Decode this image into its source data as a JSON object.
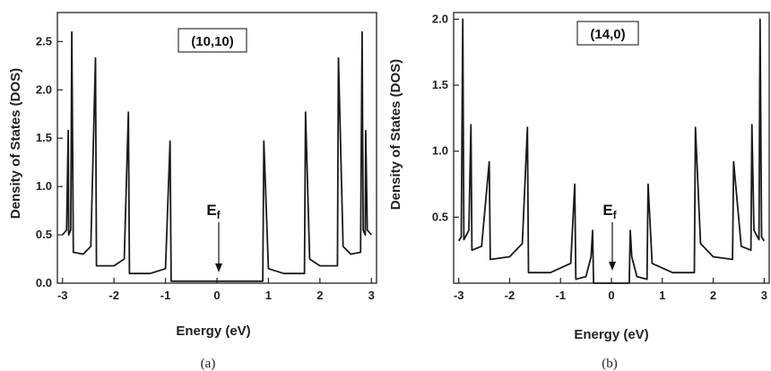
{
  "chart_data": [
    {
      "type": "line",
      "title": "(10,10)",
      "caption": "(a)",
      "xlabel": "Energy (eV)",
      "ylabel": "Density of States (DOS)",
      "xlim": [
        -3.1,
        3.1
      ],
      "ylim": [
        0,
        2.8
      ],
      "xticks": [
        -3,
        -2,
        -1,
        0,
        1,
        2,
        3
      ],
      "xtick_labels": [
        "-3",
        "-2",
        "-1",
        "0",
        "1",
        "2",
        "3"
      ],
      "yticks": [
        0,
        0.5,
        1.0,
        1.5,
        2.0,
        2.5
      ],
      "ytick_labels": [
        "0.0",
        "0.5",
        "1.0",
        "1.5",
        "2.0",
        "2.5"
      ],
      "annotation": {
        "text": "E",
        "sub": "f",
        "x": 0
      },
      "series": [
        {
          "values": [
            [
              -3.0,
              0.5
            ],
            [
              -2.92,
              0.55
            ],
            [
              -2.89,
              1.58
            ],
            [
              -2.88,
              0.5
            ],
            [
              -2.84,
              0.55
            ],
            [
              -2.82,
              2.6
            ],
            [
              -2.79,
              0.32
            ],
            [
              -2.6,
              0.3
            ],
            [
              -2.45,
              0.38
            ],
            [
              -2.36,
              2.33
            ],
            [
              -2.34,
              0.18
            ],
            [
              -2.0,
              0.18
            ],
            [
              -1.8,
              0.25
            ],
            [
              -1.72,
              1.77
            ],
            [
              -1.7,
              0.1
            ],
            [
              -1.3,
              0.1
            ],
            [
              -1.0,
              0.15
            ],
            [
              -0.91,
              1.47
            ],
            [
              -0.89,
              0.02
            ],
            [
              0.0,
              0.02
            ],
            [
              0.89,
              0.02
            ],
            [
              0.91,
              1.47
            ],
            [
              1.0,
              0.15
            ],
            [
              1.3,
              0.1
            ],
            [
              1.7,
              0.1
            ],
            [
              1.72,
              1.77
            ],
            [
              1.8,
              0.25
            ],
            [
              2.0,
              0.18
            ],
            [
              2.34,
              0.18
            ],
            [
              2.36,
              2.33
            ],
            [
              2.45,
              0.38
            ],
            [
              2.6,
              0.3
            ],
            [
              2.79,
              0.32
            ],
            [
              2.82,
              2.6
            ],
            [
              2.84,
              0.55
            ],
            [
              2.88,
              0.5
            ],
            [
              2.89,
              1.58
            ],
            [
              2.92,
              0.55
            ],
            [
              3.0,
              0.5
            ]
          ]
        }
      ]
    },
    {
      "type": "line",
      "title": "(14,0)",
      "caption": "(b)",
      "xlabel": "Energy (eV)",
      "ylabel": "Density of States (DOS)",
      "xlim": [
        -3.1,
        3.1
      ],
      "ylim": [
        0,
        2.05
      ],
      "xticks": [
        -3,
        -2,
        -1,
        0,
        1,
        2,
        3
      ],
      "xtick_labels": [
        "-3",
        "-2",
        "-1",
        "0",
        "1",
        "2",
        "3"
      ],
      "yticks": [
        0.5,
        1.0,
        1.5,
        2.0
      ],
      "ytick_labels": [
        "0.5",
        "1.0",
        "1.5",
        "2.0"
      ],
      "annotation": {
        "text": "E",
        "sub": "f",
        "x": 0
      },
      "series": [
        {
          "values": [
            [
              -3.0,
              0.32
            ],
            [
              -2.95,
              0.35
            ],
            [
              -2.92,
              2.0
            ],
            [
              -2.9,
              0.33
            ],
            [
              -2.8,
              0.4
            ],
            [
              -2.76,
              1.2
            ],
            [
              -2.74,
              0.25
            ],
            [
              -2.55,
              0.28
            ],
            [
              -2.4,
              0.92
            ],
            [
              -2.38,
              0.18
            ],
            [
              -2.0,
              0.2
            ],
            [
              -1.75,
              0.3
            ],
            [
              -1.65,
              1.18
            ],
            [
              -1.63,
              0.08
            ],
            [
              -1.2,
              0.08
            ],
            [
              -0.8,
              0.15
            ],
            [
              -0.72,
              0.75
            ],
            [
              -0.7,
              0.03
            ],
            [
              -0.5,
              0.05
            ],
            [
              -0.4,
              0.2
            ],
            [
              -0.37,
              0.4
            ],
            [
              -0.35,
              0.0
            ],
            [
              0.35,
              0.0
            ],
            [
              0.37,
              0.4
            ],
            [
              0.4,
              0.2
            ],
            [
              0.5,
              0.05
            ],
            [
              0.7,
              0.03
            ],
            [
              0.72,
              0.75
            ],
            [
              0.8,
              0.15
            ],
            [
              1.2,
              0.08
            ],
            [
              1.63,
              0.08
            ],
            [
              1.65,
              1.18
            ],
            [
              1.75,
              0.3
            ],
            [
              2.0,
              0.2
            ],
            [
              2.38,
              0.18
            ],
            [
              2.4,
              0.92
            ],
            [
              2.55,
              0.28
            ],
            [
              2.74,
              0.25
            ],
            [
              2.76,
              1.2
            ],
            [
              2.8,
              0.4
            ],
            [
              2.9,
              0.33
            ],
            [
              2.92,
              2.0
            ],
            [
              2.95,
              0.35
            ],
            [
              3.0,
              0.32
            ]
          ]
        }
      ]
    }
  ]
}
